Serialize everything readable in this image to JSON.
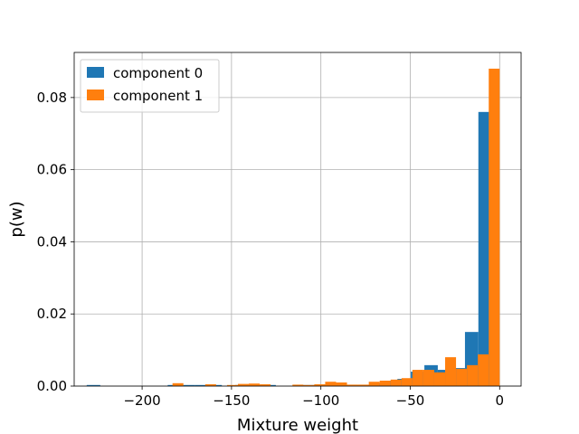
{
  "chart_data": {
    "type": "bar",
    "subtype": "histogram",
    "title": "",
    "xlabel": "Mixture weight",
    "ylabel": "p(w)",
    "xlim": [
      -238,
      12
    ],
    "ylim": [
      0,
      0.0925
    ],
    "xticks": [
      -200,
      -150,
      -100,
      -50,
      0
    ],
    "xtick_labels": [
      "−200",
      "−150",
      "−100",
      "−50",
      "0"
    ],
    "yticks": [
      0.0,
      0.02,
      0.04,
      0.06,
      0.08
    ],
    "ytick_labels": [
      "0.00",
      "0.02",
      "0.04",
      "0.06",
      "0.08"
    ],
    "grid": true,
    "legend_position": "upper-left",
    "series": [
      {
        "name": "component 0",
        "color": "#1f77b4",
        "bin_edges": [
          -231.0,
          -223.4,
          -215.9,
          -208.3,
          -200.8,
          -193.2,
          -185.7,
          -178.1,
          -170.6,
          -163.0,
          -155.4,
          -147.9,
          -140.3,
          -132.8,
          -125.2,
          -117.7,
          -110.1,
          -102.6,
          -95.0,
          -87.4,
          -79.9,
          -72.3,
          -64.8,
          -57.2,
          -49.7,
          -42.1,
          -34.6,
          -27.0,
          -19.4,
          -11.9,
          -4.3
        ],
        "values": [
          0.0003,
          0.0,
          0.0,
          0.0,
          0.0,
          0.0,
          0.0003,
          0.0003,
          0.0003,
          0.0003,
          0.0,
          0.0003,
          0.0003,
          0.0003,
          0.0,
          0.0,
          0.0003,
          0.0003,
          0.0003,
          0.0003,
          0.0003,
          0.0008,
          0.0015,
          0.002,
          0.004,
          0.0058,
          0.0045,
          0.005,
          0.015,
          0.076
        ]
      },
      {
        "name": "component 1",
        "color": "#ff7f0e",
        "bin_edges": [
          -183.0,
          -176.9,
          -170.8,
          -164.7,
          -158.6,
          -152.5,
          -146.4,
          -140.3,
          -134.2,
          -128.1,
          -122.0,
          -115.9,
          -109.8,
          -103.7,
          -97.6,
          -91.5,
          -85.4,
          -79.3,
          -73.2,
          -67.1,
          -61.0,
          -54.9,
          -48.8,
          -42.7,
          -36.6,
          -30.5,
          -24.4,
          -18.3,
          -12.2,
          -6.1,
          0.0
        ],
        "values": [
          0.0008,
          0.0,
          0.0,
          0.0005,
          0.0,
          0.0003,
          0.0006,
          0.0007,
          0.0005,
          0.0,
          0.0,
          0.0004,
          0.0003,
          0.0005,
          0.0012,
          0.001,
          0.0004,
          0.0004,
          0.0012,
          0.0015,
          0.0018,
          0.0022,
          0.0045,
          0.0045,
          0.0038,
          0.008,
          0.0048,
          0.0058,
          0.0088,
          0.088
        ]
      }
    ]
  }
}
